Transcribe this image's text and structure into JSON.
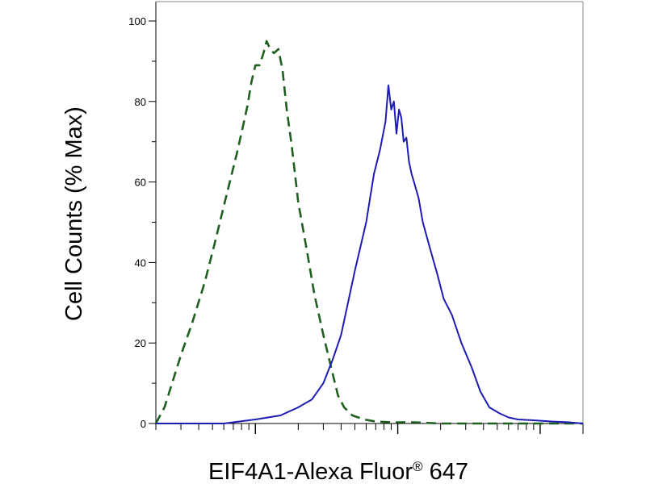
{
  "chart_data": {
    "type": "line",
    "title": "",
    "xlabel": "EIF4A1-Alexa Fluor",
    "xlabel_superscript": "®",
    "xlabel_suffix": " 647",
    "ylabel": "Cell Counts (% Max)",
    "xscale": "log",
    "xlim": [
      0.2,
      200
    ],
    "ylim": [
      0,
      100
    ],
    "yticks": [
      0,
      20,
      40,
      60,
      80,
      100
    ],
    "ytick_labels": [
      "0",
      "20",
      "40",
      "60",
      "80",
      "100"
    ],
    "xticks_major": [
      1,
      10,
      100
    ],
    "grid": false,
    "legend": "none",
    "series": [
      {
        "style": "dashed",
        "color": "#1f5f1f",
        "x": [
          0.2,
          0.23,
          0.26,
          0.3,
          0.36,
          0.44,
          0.52,
          0.62,
          0.74,
          0.82,
          0.88,
          0.94,
          1.0,
          1.07,
          1.14,
          1.2,
          1.27,
          1.35,
          1.45,
          1.55,
          1.66,
          1.8,
          2.0,
          2.3,
          2.6,
          3.0,
          3.4,
          3.8,
          4.2,
          4.8,
          5.8,
          7.0,
          9.0,
          13.0,
          20.0,
          40.0,
          100.0,
          200.0
        ],
        "y": [
          0,
          4,
          10,
          17,
          25,
          35,
          45,
          56,
          67,
          74,
          79,
          85,
          89,
          89,
          92,
          95,
          93,
          92,
          93,
          88,
          78,
          69,
          55,
          43,
          32,
          22,
          14,
          7,
          4,
          2,
          1,
          0.5,
          0.3,
          0.3,
          0,
          0,
          0,
          0
        ]
      },
      {
        "style": "solid",
        "color": "#1c1cb4",
        "x": [
          0.2,
          0.6,
          1.0,
          1.5,
          2.0,
          2.5,
          3.0,
          3.5,
          4.0,
          5.0,
          6.0,
          6.8,
          7.5,
          8.2,
          8.6,
          9.0,
          9.4,
          9.8,
          10.2,
          10.6,
          11.0,
          11.5,
          12.0,
          12.5,
          13.0,
          14.0,
          15.0,
          17.0,
          19.0,
          21.0,
          24.0,
          28.0,
          33.0,
          38.0,
          44.0,
          52.0,
          60.0,
          70.0,
          90.0,
          120.0,
          160.0,
          200.0
        ],
        "y": [
          0,
          0,
          1,
          2,
          4,
          6,
          10,
          16,
          22,
          38,
          50,
          62,
          68,
          75,
          84,
          78,
          80,
          72,
          78,
          76,
          70,
          71,
          65,
          62,
          60,
          56,
          50,
          43,
          37,
          31,
          27,
          20,
          14,
          8,
          4,
          2.5,
          1.5,
          1,
          0.8,
          0.5,
          0.3,
          0
        ]
      }
    ]
  }
}
